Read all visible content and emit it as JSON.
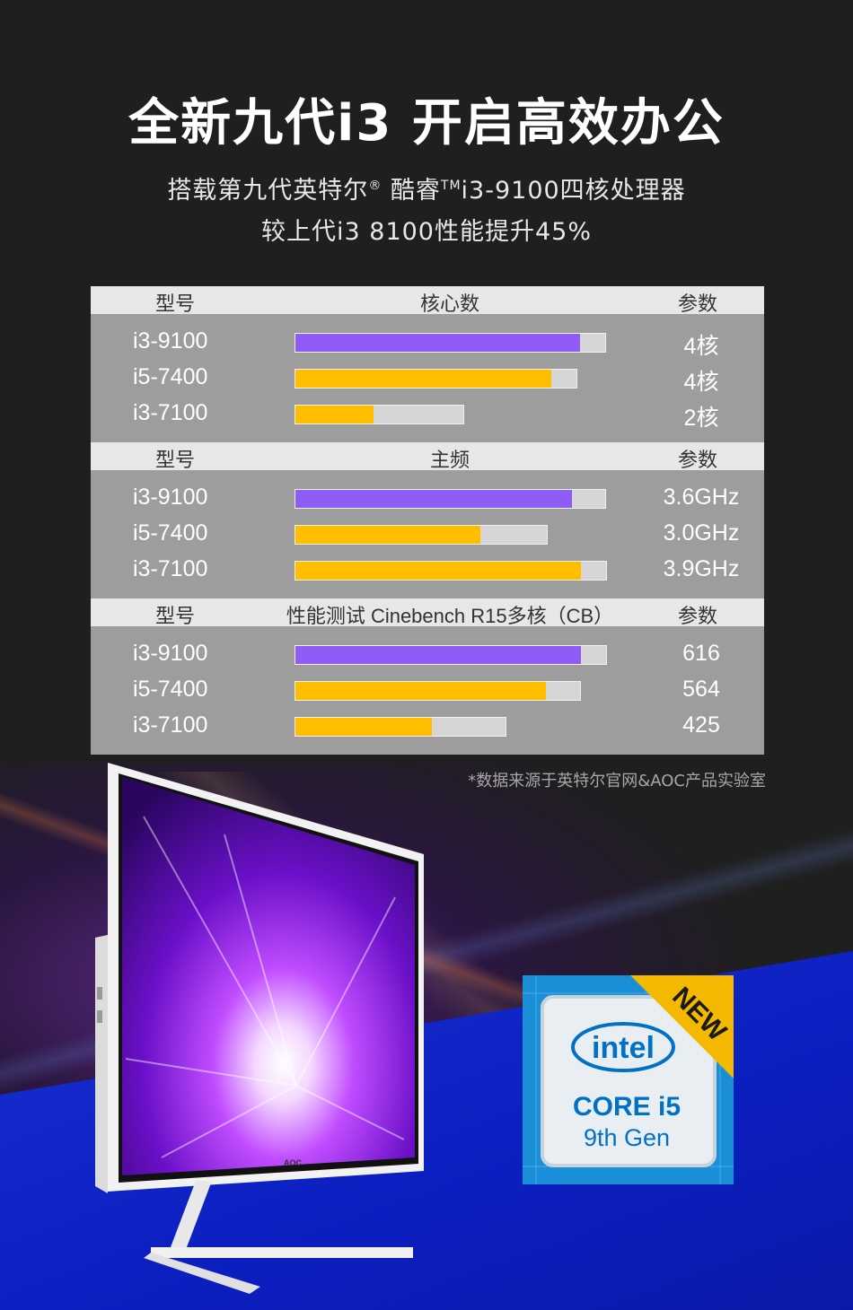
{
  "headline": "全新九代i3 开启高效办公",
  "subline1": {
    "pre": "搭载第九代英特尔",
    "reg": "®",
    "mid": " 酷睿",
    "tm": "TM",
    "post": "i3-9100四核处理器"
  },
  "subline2": "较上代i3 8100性能提升45%",
  "colors": {
    "accent": "#8f5cf5",
    "compare": "#ffbe00",
    "track": "#d6d6d6",
    "panel": "#9d9d9d",
    "header": "#e7e7e7"
  },
  "chart_data": [
    {
      "type": "bar",
      "title": "核心数",
      "header_model": "型号",
      "header_param": "参数",
      "categories": [
        "i3-9100",
        "i5-7400",
        "i3-7100"
      ],
      "values": [
        4,
        4,
        2
      ],
      "value_labels": [
        "4核",
        "4核",
        "2核"
      ]
    },
    {
      "type": "bar",
      "title": "主频",
      "header_model": "型号",
      "header_param": "参数",
      "categories": [
        "i3-9100",
        "i5-7400",
        "i3-7100"
      ],
      "values": [
        3.6,
        3.0,
        3.9
      ],
      "value_labels": [
        "3.6GHz",
        "3.0GHz",
        "3.9GHz"
      ]
    },
    {
      "type": "bar",
      "title": "性能测试 Cinebench R15多核（CB）",
      "header_model": "型号",
      "header_param": "参数",
      "categories": [
        "i3-9100",
        "i5-7400",
        "i3-7100"
      ],
      "values": [
        616,
        564,
        425
      ],
      "value_labels": [
        "616",
        "564",
        "425"
      ]
    }
  ],
  "footnote": "*数据来源于英特尔官网&AOC产品实验室",
  "monitor": {
    "brand": "AOC"
  },
  "badge": {
    "brand": "intel",
    "line1": "CORE i5",
    "line2": "9th Gen",
    "ribbon": "NEW"
  }
}
